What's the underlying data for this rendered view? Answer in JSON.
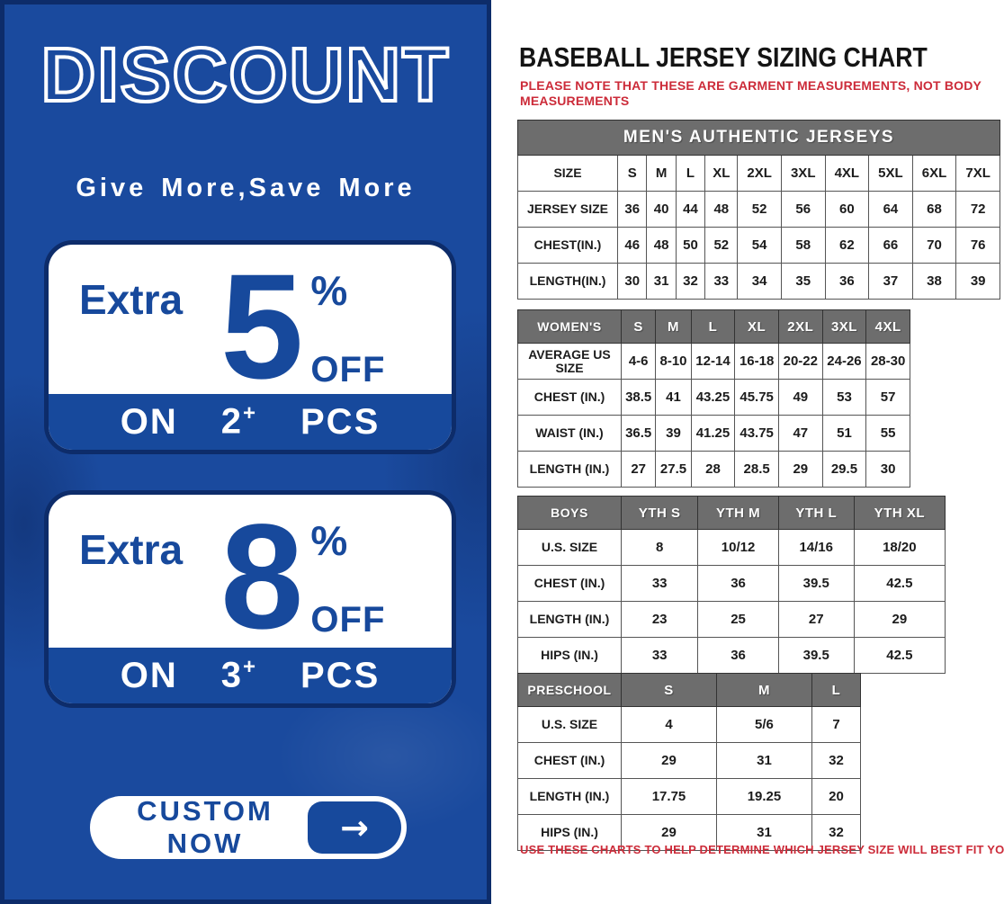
{
  "colors": {
    "panel_blue": "#1a4a9e",
    "panel_border_navy": "#0d2c6a",
    "accent_blue": "#17499c",
    "note_red": "#cc2b39",
    "table_header_gray": "#6d6d6d",
    "title_black": "#141414"
  },
  "left_panel": {
    "title": "DISCOUNT",
    "subtitle": "Give More,Save More",
    "offers": [
      {
        "prefix": "Extra",
        "value": "5",
        "percent": "%",
        "off": "OFF",
        "on": "ON",
        "qty": "2",
        "plus": "+",
        "pcs": "PCS"
      },
      {
        "prefix": "Extra",
        "value": "8",
        "percent": "%",
        "off": "OFF",
        "on": "ON",
        "qty": "3",
        "plus": "+",
        "pcs": "PCS"
      }
    ],
    "cta": {
      "label": "CUSTOM NOW",
      "arrow": "→"
    }
  },
  "right_panel": {
    "title": "BASEBALL JERSEY SIZING CHART",
    "note_top": "PLEASE NOTE THAT THESE ARE GARMENT MEASUREMENTS, NOT BODY MEASUREMENTS",
    "note_bottom": "USE THESE CHARTS TO HELP DETERMINE WHICH JERSEY SIZE WILL BEST FIT YOU.",
    "tables": [
      {
        "name": "mens",
        "title_row": "MEN'S AUTHENTIC JERSEYS",
        "header": null,
        "rows": [
          [
            "SIZE",
            "S",
            "M",
            "L",
            "XL",
            "2XL",
            "3XL",
            "4XL",
            "5XL",
            "6XL",
            "7XL"
          ],
          [
            "JERSEY SIZE",
            "36",
            "40",
            "44",
            "48",
            "52",
            "56",
            "60",
            "64",
            "68",
            "72"
          ],
          [
            "CHEST(IN.)",
            "46",
            "48",
            "50",
            "52",
            "54",
            "58",
            "62",
            "66",
            "70",
            "76"
          ],
          [
            "LENGTH(IN.)",
            "30",
            "31",
            "32",
            "33",
            "34",
            "35",
            "36",
            "37",
            "38",
            "39"
          ]
        ]
      },
      {
        "name": "womens",
        "title_row": null,
        "header": [
          "WOMEN'S",
          "S",
          "M",
          "L",
          "XL",
          "2XL",
          "3XL",
          "4XL"
        ],
        "rows": [
          [
            "AVERAGE US SIZE",
            "4-6",
            "8-10",
            "12-14",
            "16-18",
            "20-22",
            "24-26",
            "28-30"
          ],
          [
            "CHEST (IN.)",
            "38.5",
            "41",
            "43.25",
            "45.75",
            "49",
            "53",
            "57"
          ],
          [
            "WAIST (IN.)",
            "36.5",
            "39",
            "41.25",
            "43.75",
            "47",
            "51",
            "55"
          ],
          [
            "LENGTH (IN.)",
            "27",
            "27.5",
            "28",
            "28.5",
            "29",
            "29.5",
            "30"
          ]
        ]
      },
      {
        "name": "boys",
        "title_row": null,
        "header": [
          "BOYS",
          "YTH S",
          "YTH M",
          "YTH L",
          "YTH XL"
        ],
        "rows": [
          [
            "U.S. SIZE",
            "8",
            "10/12",
            "14/16",
            "18/20"
          ],
          [
            "CHEST (IN.)",
            "33",
            "36",
            "39.5",
            "42.5"
          ],
          [
            "LENGTH (IN.)",
            "23",
            "25",
            "27",
            "29"
          ],
          [
            "HIPS (IN.)",
            "33",
            "36",
            "39.5",
            "42.5"
          ]
        ]
      },
      {
        "name": "preschool",
        "title_row": null,
        "header": [
          "PRESCHOOL",
          "S",
          "M",
          "L"
        ],
        "rows": [
          [
            "U.S. SIZE",
            "4",
            "5/6",
            "7"
          ],
          [
            "CHEST (IN.)",
            "29",
            "31",
            "32"
          ],
          [
            "LENGTH (IN.)",
            "17.75",
            "19.25",
            "20"
          ],
          [
            "HIPS (IN.)",
            "29",
            "31",
            "32"
          ]
        ]
      }
    ]
  }
}
